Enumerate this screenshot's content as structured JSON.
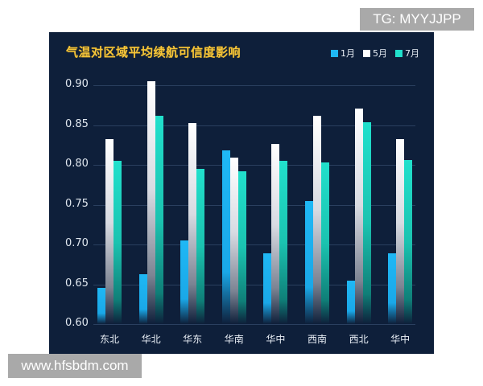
{
  "watermarks": {
    "top_right": "TG: MYYJJPP",
    "bottom_left": "www.hfsbdm.com"
  },
  "colors": {
    "panel_bg": "#0e1f3a",
    "title": "#f5c53a",
    "jan": "#1fb8f5",
    "may": "#ffffff",
    "jul": "#21e0cc"
  },
  "chart_data": {
    "type": "bar",
    "title": "气温对区域平均续航可信度影响",
    "xlabel": "",
    "ylabel": "",
    "ylim": [
      0.6,
      0.9
    ],
    "yticks": [
      "0.90",
      "0.85",
      "0.80",
      "0.75",
      "0.70",
      "0.65",
      "0.60"
    ],
    "grid": true,
    "legend_position": "top-right",
    "categories": [
      "东北",
      "华北",
      "华东",
      "华南",
      "华中",
      "西南",
      "西北",
      "华中"
    ],
    "series": [
      {
        "name": "1月",
        "color": "#1fb8f5",
        "values": [
          0.645,
          0.663,
          0.705,
          0.818,
          0.689,
          0.755,
          0.655,
          0.689
        ]
      },
      {
        "name": "5月",
        "color": "#ffffff",
        "values": [
          0.832,
          0.905,
          0.853,
          0.809,
          0.826,
          0.862,
          0.871,
          0.832
        ]
      },
      {
        "name": "7月",
        "color": "#21e0cc",
        "values": [
          0.805,
          0.862,
          0.795,
          0.792,
          0.805,
          0.803,
          0.854,
          0.806
        ]
      }
    ]
  }
}
